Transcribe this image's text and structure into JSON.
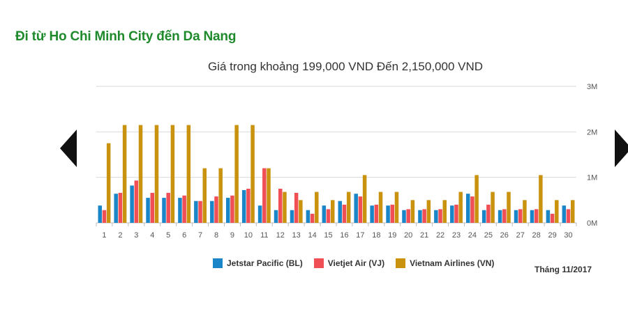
{
  "page": {
    "title": "Đi từ Ho Chi Minh City đến Da Nang",
    "month_label": "Tháng 11/2017"
  },
  "navigation": {
    "prev_icon": "triangle-left-icon",
    "next_icon": "triangle-right-icon"
  },
  "colors": {
    "title": "#1f8a2c",
    "grid": "#d9d9d9",
    "axis_text": "#555555"
  },
  "chart_data": {
    "type": "bar",
    "title": "Giá trong khoảng 199,000 VND Đến 2,150,000 VND",
    "xlabel": "",
    "ylabel": "",
    "ylim": [
      0,
      3000000
    ],
    "y_ticks": [
      0,
      1000000,
      2000000,
      3000000
    ],
    "y_tick_labels": [
      "0M",
      "1M",
      "2M",
      "3M"
    ],
    "y_axis_side": "right",
    "grid": true,
    "legend_position": "bottom",
    "categories": [
      "1",
      "2",
      "3",
      "4",
      "5",
      "6",
      "7",
      "8",
      "9",
      "10",
      "11",
      "12",
      "13",
      "14",
      "15",
      "16",
      "17",
      "18",
      "19",
      "20",
      "21",
      "22",
      "23",
      "24",
      "25",
      "26",
      "27",
      "28",
      "29",
      "30"
    ],
    "series": [
      {
        "name": "Jetstar Pacific (BL)",
        "color": "#1a86c8",
        "values": [
          380000,
          640000,
          820000,
          550000,
          550000,
          550000,
          480000,
          480000,
          550000,
          720000,
          380000,
          280000,
          280000,
          280000,
          380000,
          480000,
          640000,
          380000,
          380000,
          280000,
          280000,
          280000,
          380000,
          640000,
          280000,
          280000,
          280000,
          280000,
          280000,
          380000
        ]
      },
      {
        "name": "Vietjet Air (VJ)",
        "color": "#ef4f55",
        "values": [
          280000,
          660000,
          930000,
          660000,
          660000,
          600000,
          480000,
          580000,
          600000,
          750000,
          1200000,
          750000,
          660000,
          200000,
          300000,
          400000,
          580000,
          400000,
          400000,
          300000,
          300000,
          300000,
          400000,
          580000,
          400000,
          300000,
          300000,
          300000,
          200000,
          300000
        ]
      },
      {
        "name": "Vietnam Airlines (VN)",
        "color": "#c9930f",
        "values": [
          1750000,
          2150000,
          2150000,
          2150000,
          2150000,
          2150000,
          1200000,
          1200000,
          2150000,
          2150000,
          1200000,
          680000,
          500000,
          680000,
          500000,
          680000,
          1050000,
          680000,
          680000,
          500000,
          500000,
          500000,
          680000,
          1050000,
          680000,
          680000,
          500000,
          1050000,
          500000,
          500000
        ]
      }
    ]
  }
}
